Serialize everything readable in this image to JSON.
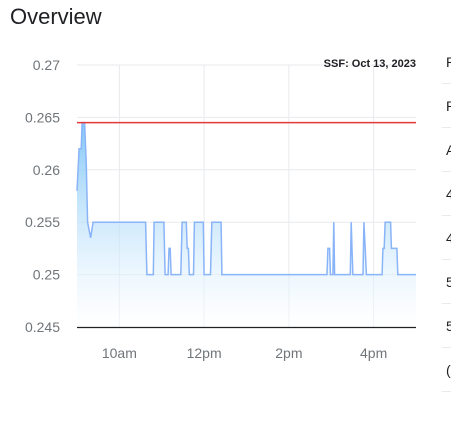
{
  "page": {
    "title": "Overview"
  },
  "chart_data": {
    "type": "area",
    "title": "",
    "annotation": "SSF: Oct 13, 2023",
    "xlabel": "",
    "ylabel": "",
    "ylim": [
      0.245,
      0.27
    ],
    "y_ticks": [
      {
        "value": 0.27,
        "label": "0.27"
      },
      {
        "value": 0.265,
        "label": "0.265"
      },
      {
        "value": 0.26,
        "label": "0.26"
      },
      {
        "value": 0.255,
        "label": "0.255"
      },
      {
        "value": 0.25,
        "label": "0.25"
      },
      {
        "value": 0.245,
        "label": "0.245"
      }
    ],
    "x_ticks": [
      {
        "hour": 10,
        "label": "10am"
      },
      {
        "hour": 12,
        "label": "12pm"
      },
      {
        "hour": 14,
        "label": "2pm"
      },
      {
        "hour": 16,
        "label": "4pm"
      }
    ],
    "xlim_hours": [
      9.0,
      17.0
    ],
    "reference_line": {
      "value": 0.2645,
      "color": "#e53935"
    },
    "grid": true,
    "colors": {
      "line": "#8ab4f8",
      "fill_top": "#7cc4f7",
      "fill_bottom": "#ffffff",
      "axis": "#202124",
      "grid": "#e8eaed"
    },
    "series": [
      {
        "points": [
          [
            9.0,
            0.258
          ],
          [
            9.05,
            0.262
          ],
          [
            9.1,
            0.262
          ],
          [
            9.12,
            0.2645
          ],
          [
            9.18,
            0.2645
          ],
          [
            9.22,
            0.2605
          ],
          [
            9.25,
            0.255
          ],
          [
            9.32,
            0.2535
          ],
          [
            9.38,
            0.255
          ],
          [
            10.0,
            0.255
          ],
          [
            10.5,
            0.255
          ],
          [
            10.62,
            0.255
          ],
          [
            10.65,
            0.25
          ],
          [
            10.8,
            0.25
          ],
          [
            10.82,
            0.255
          ],
          [
            11.05,
            0.255
          ],
          [
            11.08,
            0.25
          ],
          [
            11.15,
            0.25
          ],
          [
            11.17,
            0.2525
          ],
          [
            11.2,
            0.2525
          ],
          [
            11.22,
            0.25
          ],
          [
            11.45,
            0.25
          ],
          [
            11.48,
            0.255
          ],
          [
            11.58,
            0.255
          ],
          [
            11.6,
            0.2525
          ],
          [
            11.63,
            0.2525
          ],
          [
            11.65,
            0.25
          ],
          [
            11.75,
            0.25
          ],
          [
            11.77,
            0.255
          ],
          [
            11.98,
            0.255
          ],
          [
            12.0,
            0.25
          ],
          [
            12.15,
            0.25
          ],
          [
            12.18,
            0.255
          ],
          [
            12.4,
            0.255
          ],
          [
            12.42,
            0.25
          ],
          [
            14.0,
            0.25
          ],
          [
            14.9,
            0.25
          ],
          [
            14.92,
            0.2525
          ],
          [
            14.96,
            0.2525
          ],
          [
            14.98,
            0.25
          ],
          [
            15.04,
            0.25
          ],
          [
            15.06,
            0.255
          ],
          [
            15.08,
            0.25
          ],
          [
            15.45,
            0.25
          ],
          [
            15.47,
            0.255
          ],
          [
            15.49,
            0.2525
          ],
          [
            15.51,
            0.25
          ],
          [
            15.75,
            0.25
          ],
          [
            15.77,
            0.255
          ],
          [
            15.8,
            0.2525
          ],
          [
            15.83,
            0.25
          ],
          [
            16.2,
            0.25
          ],
          [
            16.22,
            0.2525
          ],
          [
            16.25,
            0.2525
          ],
          [
            16.27,
            0.255
          ],
          [
            16.4,
            0.255
          ],
          [
            16.42,
            0.2525
          ],
          [
            16.55,
            0.2525
          ],
          [
            16.57,
            0.25
          ],
          [
            17.0,
            0.25
          ]
        ]
      }
    ]
  },
  "side_panel": {
    "rows": [
      {
        "text": "P"
      },
      {
        "text": "P"
      },
      {
        "text": "A"
      },
      {
        "text": "4"
      },
      {
        "text": "4"
      },
      {
        "text": "5"
      },
      {
        "text": "5"
      },
      {
        "text": "("
      }
    ]
  }
}
